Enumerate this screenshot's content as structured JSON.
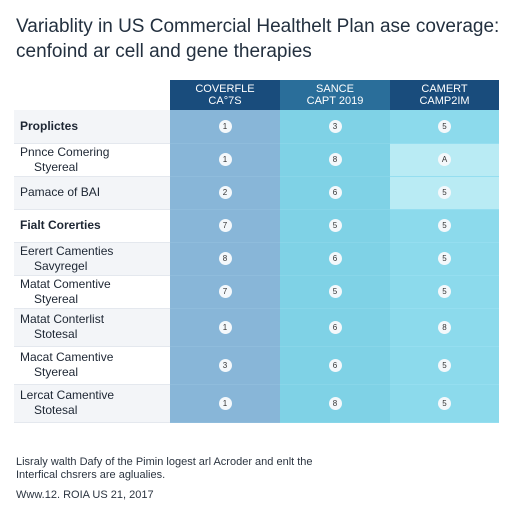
{
  "title": [
    "Variablity in US Commercial Healthelt Plan ase coverage:",
    "cenfoind ar cell and gene therapies"
  ],
  "table": {
    "headers": [
      [
        "COVERFLE",
        "CA°7S"
      ],
      [
        "SANCE",
        "CAPT 2019"
      ],
      [
        "CAMERT",
        "CAMP2IM"
      ]
    ],
    "rows": [
      {
        "label": [
          "Proplictes"
        ],
        "cells": [
          "1",
          "3",
          "5"
        ]
      },
      {
        "label": [
          "Pnnce Comering",
          "Styereal"
        ],
        "cells": [
          "1",
          "8",
          "A"
        ]
      },
      {
        "label": [
          "Pamace of BAI"
        ],
        "cells": [
          "2",
          "6",
          "5"
        ]
      },
      {
        "label": [
          "Fialt Corerties"
        ],
        "cells": [
          "7",
          "5",
          "5"
        ]
      },
      {
        "label": [
          "Eerert Camenties",
          "Savyregel"
        ],
        "cells": [
          "8",
          "6",
          "5"
        ]
      },
      {
        "label": [
          "Matat Comentive",
          "Styereal"
        ],
        "cells": [
          "7",
          "5",
          "5"
        ]
      },
      {
        "label": [
          "Matat Conterlist",
          "Stotesal"
        ],
        "cells": [
          "1",
          "6",
          "8"
        ]
      },
      {
        "label": [
          "Macat Camentive",
          "Styereal"
        ],
        "cells": [
          "3",
          "6",
          "5"
        ]
      },
      {
        "label": [
          "Lercat Camentive",
          "Stotesal"
        ],
        "cells": [
          "1",
          "8",
          "5"
        ]
      }
    ]
  },
  "footer": {
    "note": [
      "Lisraly walth Dafy of the Pimin logest arl Acroder and enlt the",
      "Interfical chsrers are aglualies."
    ],
    "source": "Www.12. ROIA US 21, 2017"
  }
}
